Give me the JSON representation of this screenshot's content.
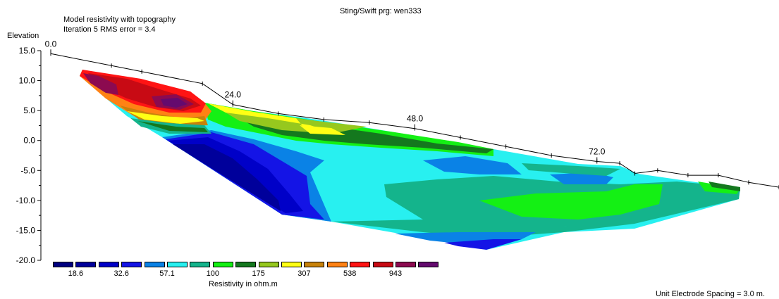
{
  "header": {
    "program": "Sting/Swift prg: wen333",
    "title": "Model resistivity with topography",
    "subtitle": "Iteration 5 RMS error = 3.4",
    "footer": "Unit Electrode Spacing = 3.0 m."
  },
  "chart_data": {
    "type": "heatmap",
    "ylabel": "Elevation",
    "yticks": [
      "15.0",
      "10.0",
      "5.0",
      "0.0",
      "-5.0",
      "-10.0",
      "-15.0",
      "-20.0"
    ],
    "ylim": [
      -20,
      15
    ],
    "xticks": [
      "0.0",
      "24.0",
      "48.0",
      "72.0"
    ],
    "xlim": [
      0,
      96
    ],
    "topography": [
      {
        "x": 0,
        "y": 14.5
      },
      {
        "x": 8,
        "y": 12.5
      },
      {
        "x": 12,
        "y": 11.5
      },
      {
        "x": 20,
        "y": 9.5
      },
      {
        "x": 24,
        "y": 6.0
      },
      {
        "x": 30,
        "y": 4.5
      },
      {
        "x": 36,
        "y": 3.5
      },
      {
        "x": 42,
        "y": 3.0
      },
      {
        "x": 48,
        "y": 2.0
      },
      {
        "x": 54,
        "y": 0.5
      },
      {
        "x": 60,
        "y": -1.0
      },
      {
        "x": 66,
        "y": -2.5
      },
      {
        "x": 72,
        "y": -3.5
      },
      {
        "x": 75,
        "y": -3.8
      },
      {
        "x": 77,
        "y": -5.5
      },
      {
        "x": 80,
        "y": -5.0
      },
      {
        "x": 84,
        "y": -5.8
      },
      {
        "x": 88,
        "y": -5.8
      },
      {
        "x": 92,
        "y": -7.0
      },
      {
        "x": 96,
        "y": -7.8
      }
    ],
    "legend": {
      "title": "Resistivity in ohm.m",
      "colors": [
        "#000080",
        "#00009b",
        "#0000c8",
        "#1414e6",
        "#0a82e6",
        "#28f0f0",
        "#14b48c",
        "#14f014",
        "#14781e",
        "#96c81e",
        "#ffff14",
        "#c8820a",
        "#ff8214",
        "#ff1414",
        "#c80a14",
        "#8c0a50",
        "#640a6e"
      ],
      "labels": [
        "18.6",
        "32.6",
        "57.1",
        "100",
        "175",
        "307",
        "538",
        "943"
      ]
    }
  }
}
